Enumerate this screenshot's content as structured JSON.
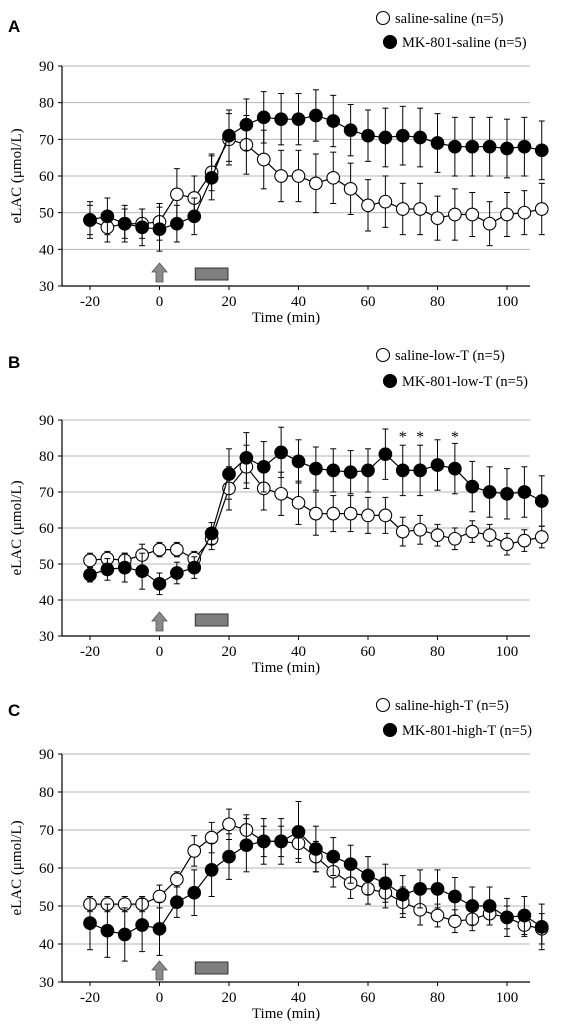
{
  "chart_data": [
    {
      "panel_label": "A",
      "type": "line",
      "xlabel": "Time (min)",
      "ylabel": "eLAC (μmol/L)",
      "xlim": [
        -20,
        110
      ],
      "ylim": [
        30,
        90
      ],
      "xticks": [
        -20,
        0,
        20,
        40,
        60,
        80,
        100
      ],
      "xtick_labels": [
        "-20",
        "0",
        "20",
        "40",
        "60",
        "80",
        "100"
      ],
      "yticks": [
        30,
        40,
        50,
        60,
        70,
        80,
        90
      ],
      "ytick_labels": [
        "30",
        "40",
        "50",
        "60",
        "70",
        "80",
        "90"
      ],
      "grid": true,
      "legend_position": "top-right",
      "x": [
        -20,
        -15,
        -10,
        -5,
        0,
        5,
        10,
        15,
        20,
        25,
        30,
        35,
        40,
        45,
        50,
        55,
        60,
        65,
        70,
        75,
        80,
        85,
        90,
        95,
        100,
        105,
        110
      ],
      "series": [
        {
          "name": "saline-saline (n=5)",
          "marker": "open",
          "values": [
            48,
            46,
            47,
            47,
            47.5,
            55,
            54,
            61,
            70,
            68.5,
            64.5,
            60,
            60,
            58,
            59.5,
            56.5,
            52,
            53,
            51,
            51,
            48.5,
            49.5,
            49.5,
            47,
            49.5,
            50,
            51
          ],
          "errors": [
            4,
            4,
            4,
            4,
            5,
            7,
            6,
            5,
            7,
            8,
            8,
            7,
            7,
            8,
            7,
            7,
            7,
            7,
            7,
            7,
            6,
            7,
            6,
            6,
            6,
            6,
            7
          ]
        },
        {
          "name": "MK-801-saline (n=5)",
          "marker": "filled",
          "values": [
            48,
            49,
            47,
            46,
            45.5,
            47,
            49,
            59.5,
            71,
            74,
            76,
            75.5,
            75.5,
            76.5,
            75,
            72.5,
            71,
            70.5,
            71,
            70.5,
            69,
            68,
            68,
            68,
            67.5,
            68,
            67
          ],
          "errors": [
            5,
            5,
            5,
            5,
            6,
            5,
            5,
            6,
            7,
            7,
            7,
            7,
            7,
            7,
            7,
            7,
            7,
            8,
            8,
            8,
            8,
            8,
            8,
            8,
            8,
            8,
            8
          ]
        }
      ],
      "annotations": []
    },
    {
      "panel_label": "B",
      "type": "line",
      "xlabel": "Time (min)",
      "ylabel": "eLAC (μmol/L)",
      "xlim": [
        -20,
        110
      ],
      "ylim": [
        30,
        90
      ],
      "xticks": [
        -20,
        0,
        20,
        40,
        60,
        80,
        100
      ],
      "xtick_labels": [
        "-20",
        "0",
        "20",
        "40",
        "60",
        "80",
        "100"
      ],
      "yticks": [
        30,
        40,
        50,
        60,
        70,
        80,
        90
      ],
      "ytick_labels": [
        "30",
        "40",
        "50",
        "60",
        "70",
        "80",
        "90"
      ],
      "grid": true,
      "legend_position": "top-right",
      "x": [
        -20,
        -15,
        -10,
        -5,
        0,
        5,
        10,
        15,
        20,
        25,
        30,
        35,
        40,
        45,
        50,
        55,
        60,
        65,
        70,
        75,
        80,
        85,
        90,
        95,
        100,
        105,
        110
      ],
      "series": [
        {
          "name": "saline-low-T (n=5)",
          "marker": "open",
          "values": [
            51,
            51.5,
            51,
            52.5,
            54,
            54,
            51.5,
            57,
            71,
            77,
            71,
            69.5,
            67,
            64,
            64,
            64,
            63.5,
            63.5,
            59,
            59.5,
            58,
            57,
            59,
            58,
            55.5,
            56.5,
            57.5
          ],
          "errors": [
            2,
            2,
            2,
            3,
            2,
            2,
            2,
            3,
            6,
            6,
            6,
            6,
            6,
            6,
            5,
            5,
            5,
            5,
            4,
            4,
            3,
            3,
            3,
            3,
            3,
            3,
            3
          ]
        },
        {
          "name": "MK-801-low-T (n=5)",
          "marker": "filled",
          "values": [
            47,
            48.5,
            49,
            48,
            44.5,
            47.5,
            49,
            58.5,
            75,
            79.5,
            77,
            81,
            78.5,
            76.5,
            76,
            75.5,
            76,
            80.5,
            76,
            76,
            77.5,
            76.5,
            71.5,
            70,
            69.5,
            70,
            67.5
          ],
          "errors": [
            2,
            3,
            4,
            5,
            3,
            3,
            3,
            3,
            7,
            7,
            7,
            7,
            6,
            6,
            6,
            6,
            6,
            7,
            7,
            7,
            7,
            7,
            7,
            7,
            7,
            7,
            7
          ]
        }
      ],
      "annotations": [
        {
          "text": "*",
          "x": 70
        },
        {
          "text": "*",
          "x": 75
        },
        {
          "text": "*",
          "x": 85
        }
      ]
    },
    {
      "panel_label": "C",
      "type": "line",
      "xlabel": "Time (min)",
      "ylabel": "eLAC (μmol/L)",
      "xlim": [
        -20,
        110
      ],
      "ylim": [
        30,
        90
      ],
      "xticks": [
        -20,
        0,
        20,
        40,
        60,
        80,
        100
      ],
      "xtick_labels": [
        "-20",
        "0",
        "20",
        "40",
        "60",
        "80",
        "100"
      ],
      "yticks": [
        30,
        40,
        50,
        60,
        70,
        80,
        90
      ],
      "ytick_labels": [
        "30",
        "40",
        "50",
        "60",
        "70",
        "80",
        "90"
      ],
      "grid": true,
      "legend_position": "top-right",
      "x": [
        -20,
        -15,
        -10,
        -5,
        0,
        5,
        10,
        15,
        20,
        25,
        30,
        35,
        40,
        45,
        50,
        55,
        60,
        65,
        70,
        75,
        80,
        85,
        90,
        95,
        100,
        105,
        110
      ],
      "series": [
        {
          "name": "saline-high-T (n=5)",
          "marker": "open",
          "values": [
            50.5,
            50.5,
            50.5,
            50.5,
            52.5,
            57,
            64.5,
            68,
            71.5,
            70,
            67,
            67,
            66.5,
            63,
            59,
            56,
            54.5,
            53.5,
            51,
            49,
            47.5,
            46,
            46.5,
            48,
            47,
            45,
            44
          ],
          "errors": [
            2,
            2,
            2,
            2,
            3,
            2,
            4,
            4,
            4,
            4,
            4,
            4,
            4,
            4,
            4,
            4,
            4,
            4,
            4,
            4,
            3,
            3,
            3,
            3,
            3,
            3,
            4
          ]
        },
        {
          "name": "MK-801-high-T (n=5)",
          "marker": "filled",
          "values": [
            45.5,
            43.5,
            42.5,
            45,
            44,
            51,
            53.5,
            59.5,
            63,
            66,
            67,
            67,
            69.5,
            65,
            63,
            61,
            58,
            56,
            53,
            54.5,
            54.5,
            52.5,
            50,
            50,
            47,
            47.5,
            44.5
          ],
          "errors": [
            7,
            7,
            7,
            7,
            7,
            4,
            6,
            7,
            6,
            7,
            6,
            6,
            8,
            6,
            5,
            5,
            5,
            5,
            5,
            5,
            5,
            5,
            5,
            5,
            5,
            5,
            6
          ]
        }
      ],
      "annotations": []
    }
  ]
}
